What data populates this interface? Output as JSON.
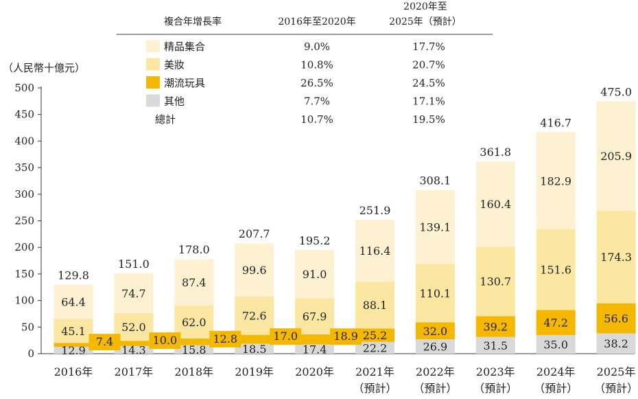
{
  "chart_data": {
    "type": "bar",
    "stacked": true,
    "unit_label": "（人民幣十億元）",
    "categories": [
      {
        "line1": "2016年",
        "line2": ""
      },
      {
        "line1": "2017年",
        "line2": ""
      },
      {
        "line1": "2018年",
        "line2": ""
      },
      {
        "line1": "2019年",
        "line2": ""
      },
      {
        "line1": "2020年",
        "line2": ""
      },
      {
        "line1": "2021年",
        "line2": "（預計）"
      },
      {
        "line1": "2022年",
        "line2": "（預計）"
      },
      {
        "line1": "2023年",
        "line2": "（預計）"
      },
      {
        "line1": "2024年",
        "line2": "（預計）"
      },
      {
        "line1": "2025年",
        "line2": "（預計）"
      }
    ],
    "series": [
      {
        "name": "其他",
        "color": "#d9d9d9",
        "values": [
          12.9,
          14.3,
          15.8,
          18.5,
          17.4,
          22.2,
          26.9,
          31.5,
          35.0,
          38.2
        ]
      },
      {
        "name": "潮流玩具",
        "color": "#f5b800",
        "values": [
          7.4,
          10.0,
          12.8,
          17.0,
          18.9,
          25.2,
          32.0,
          39.2,
          47.2,
          56.6
        ]
      },
      {
        "name": "美妝",
        "color": "#fbe6a2",
        "values": [
          45.1,
          52.0,
          62.0,
          72.6,
          67.9,
          88.1,
          110.1,
          130.7,
          151.6,
          174.3
        ]
      },
      {
        "name": "精品集合",
        "color": "#fdf1d2",
        "values": [
          64.4,
          74.7,
          87.4,
          99.6,
          91.0,
          116.4,
          139.1,
          160.4,
          182.9,
          205.9
        ]
      }
    ],
    "totals": [
      129.8,
      151.0,
      178.0,
      207.7,
      195.2,
      251.9,
      308.1,
      361.8,
      416.7,
      475.0
    ],
    "ylim": [
      0,
      500
    ],
    "yticks": [
      0,
      50,
      100,
      150,
      200,
      250,
      300,
      350,
      400,
      450,
      500
    ],
    "value_format": [
      "12.9",
      "14.3",
      "15.8",
      "18.5",
      "17.4",
      "22.2",
      "26.9",
      "31.5",
      "35.0",
      "38.2"
    ],
    "cagr_table": {
      "header": {
        "label": "複合年增長率",
        "col1": "2016年至2020年",
        "col2_line1": "2020年至",
        "col2_line2": "2025年（預計）"
      },
      "rows": [
        {
          "name": "精品集合",
          "col1": "9.0%",
          "col2": "17.7%",
          "swatch": "#fdf1d2"
        },
        {
          "name": "美妝",
          "col1": "10.8%",
          "col2": "20.7%",
          "swatch": "#fbe6a2"
        },
        {
          "name": "潮流玩具",
          "col1": "26.5%",
          "col2": "24.5%",
          "swatch": "#f5b800"
        },
        {
          "name": "其他",
          "col1": "7.7%",
          "col2": "17.1%",
          "swatch": "#d9d9d9"
        },
        {
          "name": "總計",
          "col1": "10.7%",
          "col2": "19.5%",
          "swatch": ""
        }
      ]
    }
  }
}
